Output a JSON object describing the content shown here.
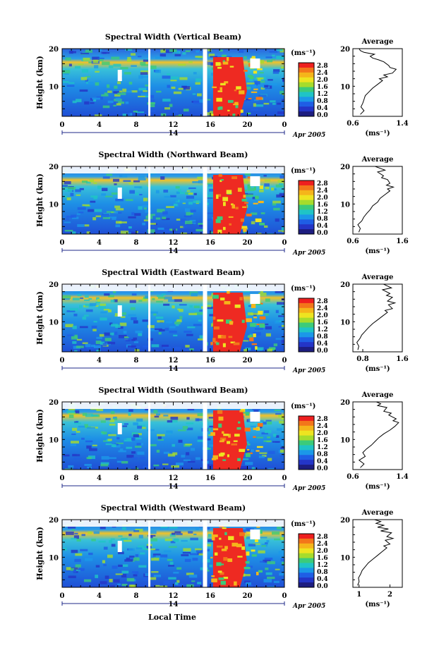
{
  "x_axis_label": "Local Time",
  "colorbar": {
    "unit": "(ms⁻¹)",
    "ticks": [
      "2.8",
      "2.4",
      "2.0",
      "1.6",
      "1.2",
      "0.8",
      "0.4",
      "0.0"
    ],
    "colors": [
      "#ee1f1f",
      "#f3761a",
      "#f5b51a",
      "#eee420",
      "#a6dc2c",
      "#3ccb7a",
      "#1fc4c6",
      "#1b98e8",
      "#1f5ee5",
      "#2435c7",
      "#1d1d80"
    ]
  },
  "chart_data": [
    {
      "type": "heatmap",
      "title": "Spectral Width (Vertical Beam)",
      "ylabel": "Height (km)",
      "xlabel": "Local Time",
      "x_ticks": [
        "0",
        "4",
        "8",
        "12",
        "16",
        "20",
        "0"
      ],
      "y_ticks": [
        "20",
        "10"
      ],
      "xlim": [
        0,
        24
      ],
      "ylim": [
        2,
        20
      ],
      "date_label": "14",
      "date_suffix": "Apr 2005",
      "profile": {
        "title": "Average",
        "unit": "(ms⁻¹)",
        "x_ticks": [
          "0.6",
          "1.4"
        ],
        "xlim": [
          0.6,
          1.4
        ],
        "y_ticks": [
          "20",
          "10"
        ],
        "points": [
          [
            0.72,
            2.5
          ],
          [
            0.78,
            3.5
          ],
          [
            0.73,
            4.5
          ],
          [
            0.76,
            5.5
          ],
          [
            0.78,
            6.5
          ],
          [
            0.8,
            7.5
          ],
          [
            0.86,
            8.5
          ],
          [
            0.92,
            9.5
          ],
          [
            1.0,
            10.5
          ],
          [
            1.08,
            11.5
          ],
          [
            1.03,
            12
          ],
          [
            1.16,
            12.5
          ],
          [
            1.1,
            13
          ],
          [
            1.24,
            13.5
          ],
          [
            1.3,
            14.5
          ],
          [
            1.2,
            15
          ],
          [
            1.18,
            15.5
          ],
          [
            1.1,
            16.5
          ],
          [
            1.02,
            17
          ],
          [
            0.92,
            17.5
          ],
          [
            0.88,
            18
          ],
          [
            0.95,
            18.5
          ],
          [
            0.78,
            19
          ],
          [
            0.72,
            19.5
          ],
          [
            0.7,
            20
          ]
        ]
      }
    },
    {
      "type": "heatmap",
      "title": "Spectral Width (Northward Beam)",
      "ylabel": "Height (km)",
      "xlabel": "Local Time",
      "x_ticks": [
        "0",
        "4",
        "8",
        "12",
        "16",
        "20",
        "0"
      ],
      "y_ticks": [
        "20",
        "10"
      ],
      "xlim": [
        0,
        24
      ],
      "ylim": [
        2,
        20
      ],
      "date_label": "14",
      "date_suffix": "Apr 2005",
      "profile": {
        "title": "Average",
        "unit": "(ms⁻¹)",
        "x_ticks": [
          "0.6",
          "1.6"
        ],
        "xlim": [
          0.6,
          1.6
        ],
        "y_ticks": [
          "20",
          "10"
        ],
        "points": [
          [
            0.72,
            2.5
          ],
          [
            0.75,
            3.5
          ],
          [
            0.7,
            4.5
          ],
          [
            0.78,
            5.5
          ],
          [
            0.82,
            6.5
          ],
          [
            0.88,
            7.5
          ],
          [
            0.95,
            8.5
          ],
          [
            1.0,
            9.5
          ],
          [
            1.1,
            10.5
          ],
          [
            1.15,
            11.5
          ],
          [
            1.25,
            12.5
          ],
          [
            1.35,
            13.5
          ],
          [
            1.3,
            14
          ],
          [
            1.42,
            14.5
          ],
          [
            1.28,
            15
          ],
          [
            1.35,
            15.5
          ],
          [
            1.3,
            16.5
          ],
          [
            1.18,
            17
          ],
          [
            1.22,
            17.5
          ],
          [
            1.1,
            18.5
          ],
          [
            1.25,
            19
          ],
          [
            1.15,
            19.5
          ],
          [
            1.05,
            20
          ]
        ]
      }
    },
    {
      "type": "heatmap",
      "title": "Spectral Width (Eastward Beam)",
      "ylabel": "Height (km)",
      "xlabel": "Local Time",
      "x_ticks": [
        "0",
        "4",
        "8",
        "12",
        "16",
        "20",
        "0"
      ],
      "y_ticks": [
        "20",
        "10"
      ],
      "xlim": [
        0,
        24
      ],
      "ylim": [
        2,
        20
      ],
      "date_label": "14",
      "date_suffix": "Apr 2005",
      "profile": {
        "title": "Average",
        "unit": "(ms⁻¹)",
        "x_ticks": [
          "0.8",
          "1.6"
        ],
        "xlim": [
          0.6,
          1.6
        ],
        "y_ticks": [
          "20",
          "10"
        ],
        "points": [
          [
            0.7,
            2.5
          ],
          [
            0.72,
            3.5
          ],
          [
            0.68,
            4.5
          ],
          [
            0.74,
            5.5
          ],
          [
            0.78,
            6.5
          ],
          [
            0.85,
            7.5
          ],
          [
            0.92,
            8.5
          ],
          [
            1.0,
            9.5
          ],
          [
            1.1,
            10.5
          ],
          [
            1.2,
            11.5
          ],
          [
            1.3,
            12.5
          ],
          [
            1.25,
            13
          ],
          [
            1.4,
            13.5
          ],
          [
            1.32,
            14.5
          ],
          [
            1.45,
            15
          ],
          [
            1.3,
            15.5
          ],
          [
            1.4,
            16.5
          ],
          [
            1.28,
            17
          ],
          [
            1.35,
            17.5
          ],
          [
            1.2,
            18.5
          ],
          [
            1.38,
            19
          ],
          [
            1.3,
            19.5
          ],
          [
            1.22,
            20
          ]
        ]
      }
    },
    {
      "type": "heatmap",
      "title": "Spectral Width (Southward Beam)",
      "ylabel": "Height (km)",
      "xlabel": "Local Time",
      "x_ticks": [
        "0",
        "4",
        "8",
        "12",
        "16",
        "20",
        "0"
      ],
      "y_ticks": [
        "20",
        "10"
      ],
      "xlim": [
        0,
        24
      ],
      "ylim": [
        2,
        20
      ],
      "date_label": "14",
      "date_suffix": "Apr 2005",
      "profile": {
        "title": "Average",
        "unit": "(ms⁻¹)",
        "x_ticks": [
          "0.6",
          "1.4"
        ],
        "xlim": [
          0.6,
          1.4
        ],
        "y_ticks": [
          "20",
          "10"
        ],
        "points": [
          [
            0.72,
            2.5
          ],
          [
            0.78,
            3.5
          ],
          [
            0.7,
            4.5
          ],
          [
            0.8,
            5.5
          ],
          [
            0.76,
            6.5
          ],
          [
            0.82,
            7.5
          ],
          [
            0.9,
            8.5
          ],
          [
            0.96,
            9.5
          ],
          [
            1.02,
            10.5
          ],
          [
            1.1,
            11.5
          ],
          [
            1.2,
            12.5
          ],
          [
            1.28,
            13.5
          ],
          [
            1.34,
            14.5
          ],
          [
            1.25,
            15
          ],
          [
            1.3,
            15.5
          ],
          [
            1.18,
            16.5
          ],
          [
            1.22,
            17
          ],
          [
            1.1,
            17.5
          ],
          [
            1.15,
            18.5
          ],
          [
            1.0,
            19
          ],
          [
            1.05,
            19.5
          ],
          [
            0.98,
            20
          ]
        ]
      }
    },
    {
      "type": "heatmap",
      "title": "Spectral Width (Westward Beam)",
      "ylabel": "Height (km)",
      "xlabel": "Local Time",
      "x_ticks": [
        "0",
        "4",
        "8",
        "12",
        "16",
        "20",
        "0"
      ],
      "y_ticks": [
        "20",
        "10"
      ],
      "xlim": [
        0,
        24
      ],
      "ylim": [
        2,
        20
      ],
      "date_label": "14",
      "date_suffix": "Apr 2005",
      "profile": {
        "title": "Average",
        "unit": "(ms⁻¹)",
        "x_ticks": [
          "1",
          "2"
        ],
        "xlim": [
          0.8,
          2.4
        ],
        "y_ticks": [
          "20",
          "10"
        ],
        "points": [
          [
            0.95,
            2.5
          ],
          [
            1.0,
            3.5
          ],
          [
            0.98,
            4.5
          ],
          [
            1.05,
            5.5
          ],
          [
            1.1,
            6.5
          ],
          [
            1.2,
            7.5
          ],
          [
            1.3,
            8.5
          ],
          [
            1.45,
            9.5
          ],
          [
            1.6,
            10.5
          ],
          [
            1.75,
            11.5
          ],
          [
            1.9,
            12.5
          ],
          [
            1.8,
            13
          ],
          [
            2.0,
            13.5
          ],
          [
            1.85,
            14.5
          ],
          [
            2.1,
            15
          ],
          [
            1.9,
            15.5
          ],
          [
            2.05,
            16.5
          ],
          [
            1.7,
            17
          ],
          [
            1.95,
            17.5
          ],
          [
            1.6,
            18
          ],
          [
            1.8,
            18.5
          ],
          [
            1.55,
            19
          ],
          [
            1.7,
            19.5
          ],
          [
            1.5,
            20
          ]
        ]
      }
    }
  ]
}
